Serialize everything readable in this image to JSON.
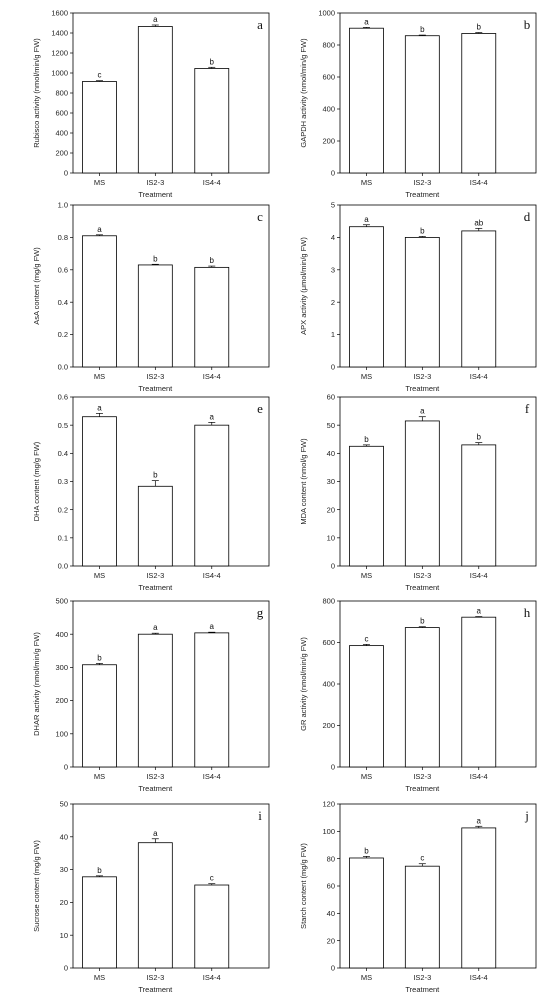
{
  "chart_data": [
    {
      "type": "bar",
      "panel": "a",
      "categories": [
        "MS",
        "IS2-3",
        "IS4-4"
      ],
      "values": [
        915,
        1465,
        1045
      ],
      "errors": [
        8,
        15,
        12
      ],
      "significance": [
        "c",
        "a",
        "b"
      ],
      "ylabel": "Rubisco activity (nmol/min/g FW)",
      "xlabel": "Treatment",
      "ylim": [
        0,
        1600
      ],
      "yticks": [
        "0",
        "200",
        "400",
        "600",
        "800",
        "1000",
        "1200",
        "1400",
        "1600"
      ]
    },
    {
      "type": "bar",
      "panel": "b",
      "categories": [
        "MS",
        "IS2-3",
        "IS4-4"
      ],
      "values": [
        905,
        858,
        872
      ],
      "errors": [
        5,
        4,
        6
      ],
      "significance": [
        "a",
        "b",
        "b"
      ],
      "ylabel": "GAPDH activity (nmol/min/g FW)",
      "xlabel": "Treatment",
      "ylim": [
        0,
        1000
      ],
      "yticks": [
        "0",
        "200",
        "400",
        "600",
        "800",
        "1000"
      ]
    },
    {
      "type": "bar",
      "panel": "c",
      "categories": [
        "MS",
        "IS2-3",
        "IS4-4"
      ],
      "values": [
        0.81,
        0.63,
        0.615
      ],
      "errors": [
        0.006,
        0.004,
        0.008
      ],
      "significance": [
        "a",
        "b",
        "b"
      ],
      "ylabel": "AsA content (mg/g FW)",
      "xlabel": "Treatment",
      "ylim": [
        0,
        1.0
      ],
      "yticks": [
        "0.0",
        "0.2",
        "0.4",
        "0.6",
        "0.8",
        "1.0"
      ]
    },
    {
      "type": "bar",
      "panel": "d",
      "categories": [
        "MS",
        "IS2-3",
        "IS4-4"
      ],
      "values": [
        4.33,
        4.0,
        4.2
      ],
      "errors": [
        0.06,
        0.03,
        0.08
      ],
      "significance": [
        "a",
        "b",
        "ab"
      ],
      "ylabel": "APX activity (μmol/min/g FW)",
      "xlabel": "Treatment",
      "ylim": [
        0,
        5
      ],
      "yticks": [
        "0",
        "1",
        "2",
        "3",
        "4",
        "5"
      ]
    },
    {
      "type": "bar",
      "panel": "e",
      "categories": [
        "MS",
        "IS2-3",
        "IS4-4"
      ],
      "values": [
        0.53,
        0.283,
        0.5
      ],
      "errors": [
        0.012,
        0.02,
        0.01
      ],
      "significance": [
        "a",
        "b",
        "a"
      ],
      "ylabel": "DHA content (mg/g FW)",
      "xlabel": "Treatment",
      "ylim": [
        0,
        0.6
      ],
      "yticks": [
        "0.0",
        "0.1",
        "0.2",
        "0.3",
        "0.4",
        "0.5",
        "0.6"
      ]
    },
    {
      "type": "bar",
      "panel": "f",
      "categories": [
        "MS",
        "IS2-3",
        "IS4-4"
      ],
      "values": [
        42.5,
        51.5,
        43
      ],
      "errors": [
        0.5,
        1.5,
        0.8
      ],
      "significance": [
        "b",
        "a",
        "b"
      ],
      "ylabel": "MDA content (nmol/g FW)",
      "xlabel": "Treatment",
      "ylim": [
        0,
        60
      ],
      "yticks": [
        "0",
        "10",
        "20",
        "30",
        "40",
        "50",
        "60"
      ]
    },
    {
      "type": "bar",
      "panel": "g",
      "categories": [
        "MS",
        "IS2-3",
        "IS4-4"
      ],
      "values": [
        308,
        400,
        404
      ],
      "errors": [
        4,
        3,
        2
      ],
      "significance": [
        "b",
        "a",
        "a"
      ],
      "ylabel": "DHAR activity (nmol/min/g FW)",
      "xlabel": "Treatment",
      "ylim": [
        0,
        500
      ],
      "yticks": [
        "0",
        "100",
        "200",
        "300",
        "400",
        "500"
      ]
    },
    {
      "type": "bar",
      "panel": "h",
      "categories": [
        "MS",
        "IS2-3",
        "IS4-4"
      ],
      "values": [
        585,
        672,
        722
      ],
      "errors": [
        6,
        4,
        3
      ],
      "significance": [
        "c",
        "b",
        "a"
      ],
      "ylabel": "GR activity (nmol/min/g FW)",
      "xlabel": "Treatment",
      "ylim": [
        0,
        800
      ],
      "yticks": [
        "0",
        "200",
        "400",
        "600",
        "800"
      ]
    },
    {
      "type": "bar",
      "panel": "i",
      "categories": [
        "MS",
        "IS2-3",
        "IS4-4"
      ],
      "values": [
        27.8,
        38.2,
        25.3
      ],
      "errors": [
        0.3,
        1.2,
        0.4
      ],
      "significance": [
        "b",
        "a",
        "c"
      ],
      "ylabel": "Sucrose content (mg/g FW)",
      "xlabel": "Treatment",
      "ylim": [
        0,
        50
      ],
      "yticks": [
        "0",
        "10",
        "20",
        "30",
        "40",
        "50"
      ]
    },
    {
      "type": "bar",
      "panel": "j",
      "categories": [
        "MS",
        "IS2-3",
        "IS4-4"
      ],
      "values": [
        80.5,
        74.5,
        102.5
      ],
      "errors": [
        1.2,
        1.8,
        1.2
      ],
      "significance": [
        "b",
        "c",
        "a"
      ],
      "ylabel": "Starch content (mg/g FW)",
      "xlabel": "Treatment",
      "ylim": [
        0,
        120
      ],
      "yticks": [
        "0",
        "20",
        "40",
        "60",
        "80",
        "100",
        "120"
      ]
    }
  ]
}
